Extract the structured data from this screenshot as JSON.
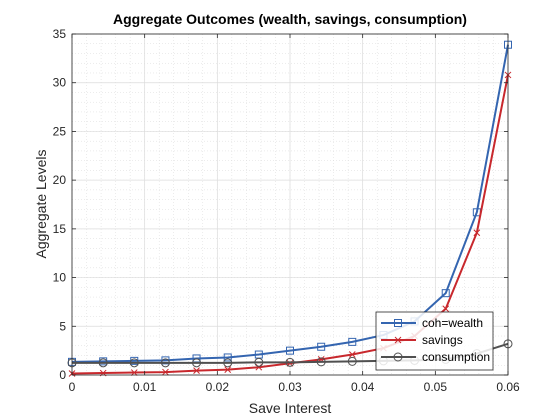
{
  "chart_data": {
    "type": "line",
    "title": "Aggregate Outcomes (wealth, savings, consumption)",
    "xlabel": "Save Interest",
    "ylabel": "Aggregate Levels",
    "xlim": [
      0,
      0.06
    ],
    "ylim": [
      0,
      35
    ],
    "xticks": [
      0,
      0.01,
      0.02,
      0.03,
      0.04,
      0.05,
      0.06
    ],
    "xtick_labels": [
      "0",
      "0.01",
      "0.02",
      "0.03",
      "0.04",
      "0.05",
      "0.06"
    ],
    "yticks": [
      0,
      5,
      10,
      15,
      20,
      25,
      30,
      35
    ],
    "ytick_labels": [
      "0",
      "5",
      "10",
      "15",
      "20",
      "25",
      "30",
      "35"
    ],
    "grid": true,
    "minor_grid": true,
    "legend_position": "lower-right",
    "x": [
      0,
      0.00429,
      0.00857,
      0.01286,
      0.01714,
      0.02143,
      0.02571,
      0.03,
      0.03429,
      0.03857,
      0.04286,
      0.04714,
      0.05143,
      0.05571,
      0.06
    ],
    "series": [
      {
        "name": "coh=wealth",
        "color": "#3465b0",
        "marker": "square",
        "values": [
          1.35,
          1.4,
          1.45,
          1.5,
          1.7,
          1.8,
          2.1,
          2.5,
          2.9,
          3.4,
          4.1,
          5.5,
          8.4,
          16.7,
          33.9
        ]
      },
      {
        "name": "savings",
        "color": "#c8282d",
        "marker": "x",
        "values": [
          0.15,
          0.2,
          0.25,
          0.3,
          0.45,
          0.55,
          0.8,
          1.2,
          1.6,
          2.1,
          2.75,
          4.0,
          6.8,
          14.6,
          30.8
        ]
      },
      {
        "name": "consumption",
        "color": "#505050",
        "marker": "circle",
        "values": [
          1.25,
          1.25,
          1.25,
          1.25,
          1.25,
          1.25,
          1.3,
          1.3,
          1.35,
          1.4,
          1.45,
          1.5,
          1.6,
          2.2,
          3.2
        ]
      }
    ]
  }
}
